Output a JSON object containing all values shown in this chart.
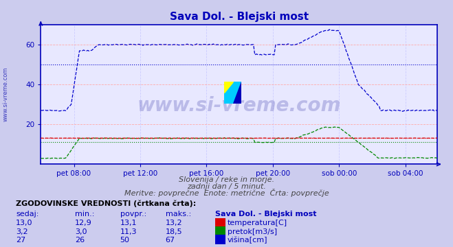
{
  "title": "Sava Dol. - Blejski most",
  "subtitle1": "Slovenija / reke in morje.",
  "subtitle2": "zadnji dan / 5 minut.",
  "subtitle3": "Meritve: povprečne  Enote: metrične  Črta: povprečje",
  "xlabel_ticks": [
    "pet 08:00",
    "pet 12:00",
    "pet 16:00",
    "pet 20:00",
    "sob 00:00",
    "sob 04:00"
  ],
  "ylabel_min": 0,
  "ylabel_max": 70,
  "yticks": [
    20,
    40,
    60
  ],
  "bg_color": "#ccccee",
  "plot_bg_color": "#e8e8ff",
  "grid_color_h": "#ffaaaa",
  "grid_color_v": "#ccccff",
  "axis_color": "#0000bb",
  "tick_color": "#0000bb",
  "temp_color": "#dd0000",
  "pretok_color": "#008800",
  "visina_color": "#0000cc",
  "table_header": "ZGODOVINSKE VREDNOSTI (črtkana črta):",
  "col_headers": [
    "sedaj:",
    "min.:",
    "povpr.:",
    "maks.:",
    "Sava Dol. - Blejski most"
  ],
  "row_temp": [
    "13,0",
    "12,9",
    "13,1",
    "13,2",
    "temperatura[C]"
  ],
  "row_pretok": [
    "3,2",
    "3,0",
    "11,3",
    "18,5",
    "pretok[m3/s]"
  ],
  "row_visina": [
    "27",
    "26",
    "50",
    "67",
    "višina[cm]"
  ],
  "n_points": 288,
  "temp_avg": 13.1,
  "pretok_avg": 11.3,
  "visina_avg": 50,
  "tick_positions": [
    24,
    72,
    120,
    168,
    216,
    264
  ]
}
